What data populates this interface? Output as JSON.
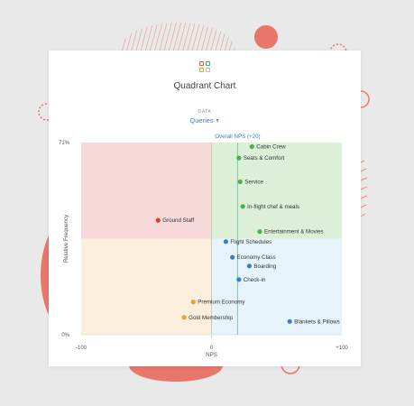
{
  "header": {
    "title": "Quadrant Chart",
    "data_label": "DATA",
    "dropdown_value": "Queries"
  },
  "colors": {
    "accent": "#3b7fc4",
    "quadrant_top_left": "#f7d9d9",
    "quadrant_top_right": "#dcf0d8",
    "quadrant_bottom_left": "#fbeedd",
    "quadrant_bottom_right": "#e6f3fb",
    "point_red": "#d9412f",
    "point_green": "#4caf50",
    "point_blue": "#3a7ec6",
    "point_orange": "#f0a030",
    "reference_line": "#7bc9a8"
  },
  "chart_data": {
    "type": "scatter",
    "title": "Quadrant Chart",
    "xlabel": "NPS",
    "ylabel": "Relative Frequency",
    "xlim": [
      -100,
      100
    ],
    "ylim": [
      0,
      71
    ],
    "x_tick_labels": [
      "-100",
      "0",
      "+100"
    ],
    "y_tick_labels": [
      "71%",
      "0%"
    ],
    "reference_line": {
      "label": "Overall NPS (+20)",
      "x": 20
    },
    "points": [
      {
        "label": "Cabin Crew",
        "x": 31,
        "y": 69.5,
        "color": "green"
      },
      {
        "label": "Seats & Comfort",
        "x": 21,
        "y": 65.3,
        "color": "green"
      },
      {
        "label": "Service",
        "x": 22,
        "y": 56.5,
        "color": "green"
      },
      {
        "label": "In-flight chef & meals",
        "x": 24,
        "y": 47.4,
        "color": "green"
      },
      {
        "label": "Entertainment & Movies",
        "x": 37,
        "y": 38.1,
        "color": "green"
      },
      {
        "label": "Ground Staff",
        "x": -41,
        "y": 42.3,
        "color": "red"
      },
      {
        "label": "Flight Schedules",
        "x": 11,
        "y": 34.4,
        "color": "blue"
      },
      {
        "label": "Economy Class",
        "x": 16,
        "y": 28.6,
        "color": "blue"
      },
      {
        "label": "Boarding",
        "x": 29,
        "y": 25.4,
        "color": "blue"
      },
      {
        "label": "Check-in",
        "x": 21,
        "y": 20.4,
        "color": "blue"
      },
      {
        "label": "Premium Economy",
        "x": -14,
        "y": 12.1,
        "color": "orange"
      },
      {
        "label": "Gold Membership",
        "x": -21,
        "y": 6.4,
        "color": "orange"
      },
      {
        "label": "Blankets & Pillows",
        "x": 60,
        "y": 4.9,
        "color": "blue"
      }
    ]
  }
}
